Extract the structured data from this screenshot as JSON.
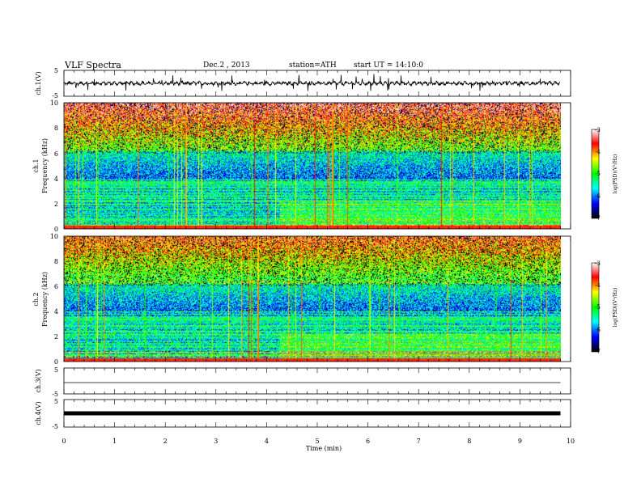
{
  "header": {
    "title": "VLF Spectra",
    "date": "Dec.2 , 2013",
    "station": "station=ATH",
    "start": "start UT = 14:10:0"
  },
  "chart_data": [
    {
      "type": "line",
      "panel": "ch1-waveform",
      "ylabel": "ch.1(V)",
      "yticks": [
        "5",
        "-5"
      ],
      "ylim": [
        -5,
        5
      ],
      "xlim": [
        0,
        10
      ],
      "baseline": 0,
      "data_xmax": 9.8
    },
    {
      "type": "heatmap",
      "panel": "ch1-spectrogram",
      "ylabel": "ch.1 Frequency (kHz)",
      "ylabel_line1": "ch.1",
      "ylabel_line2": "Frequency (kHz)",
      "yticks": [
        "0",
        "2",
        "4",
        "6",
        "8",
        "10"
      ],
      "ylim": [
        0,
        10
      ],
      "xlim": [
        0,
        10
      ],
      "data_xmax": 9.8,
      "colorbar": {
        "label": "log(PSD)(V²/Hz)",
        "ticks": [
          "-3",
          "-4",
          "-5",
          "-6",
          "-7"
        ],
        "range": [
          -7,
          -3
        ]
      }
    },
    {
      "type": "heatmap",
      "panel": "ch2-spectrogram",
      "ylabel": "ch.2 Frequency (kHz)",
      "ylabel_line1": "ch.2",
      "ylabel_line2": "Frequency (kHz)",
      "yticks": [
        "0",
        "2",
        "4",
        "6",
        "8",
        "10"
      ],
      "ylim": [
        0,
        10
      ],
      "xlim": [
        0,
        10
      ],
      "data_xmax": 9.8,
      "colorbar": {
        "label": "log(PSD)(V²/Hz)",
        "ticks": [
          "-3",
          "-4",
          "-5",
          "-6",
          "-7"
        ],
        "range": [
          -7,
          -3
        ]
      }
    },
    {
      "type": "line",
      "panel": "ch3-waveform",
      "ylabel": "ch.3(V)",
      "yticks": [
        "5",
        "-5"
      ],
      "ylim": [
        -5,
        5
      ],
      "xlim": [
        0,
        10
      ],
      "baseline": 0,
      "data_xmax": 9.8
    },
    {
      "type": "line",
      "panel": "ch4-waveform",
      "ylabel": "ch.4(V)",
      "yticks": [
        "5",
        "-5"
      ],
      "ylim": [
        -5,
        5
      ],
      "xlim": [
        0,
        10
      ],
      "baseline": 0,
      "data_xmax": 9.8
    }
  ],
  "xaxis": {
    "label": "Time (min)",
    "ticks": [
      "0",
      "1",
      "2",
      "3",
      "4",
      "5",
      "6",
      "7",
      "8",
      "9",
      "10"
    ]
  },
  "colors": {
    "colormap": [
      "#000000",
      "#0000ff",
      "#00ffff",
      "#00ff00",
      "#ffff00",
      "#ff0000",
      "#ffffff"
    ]
  }
}
